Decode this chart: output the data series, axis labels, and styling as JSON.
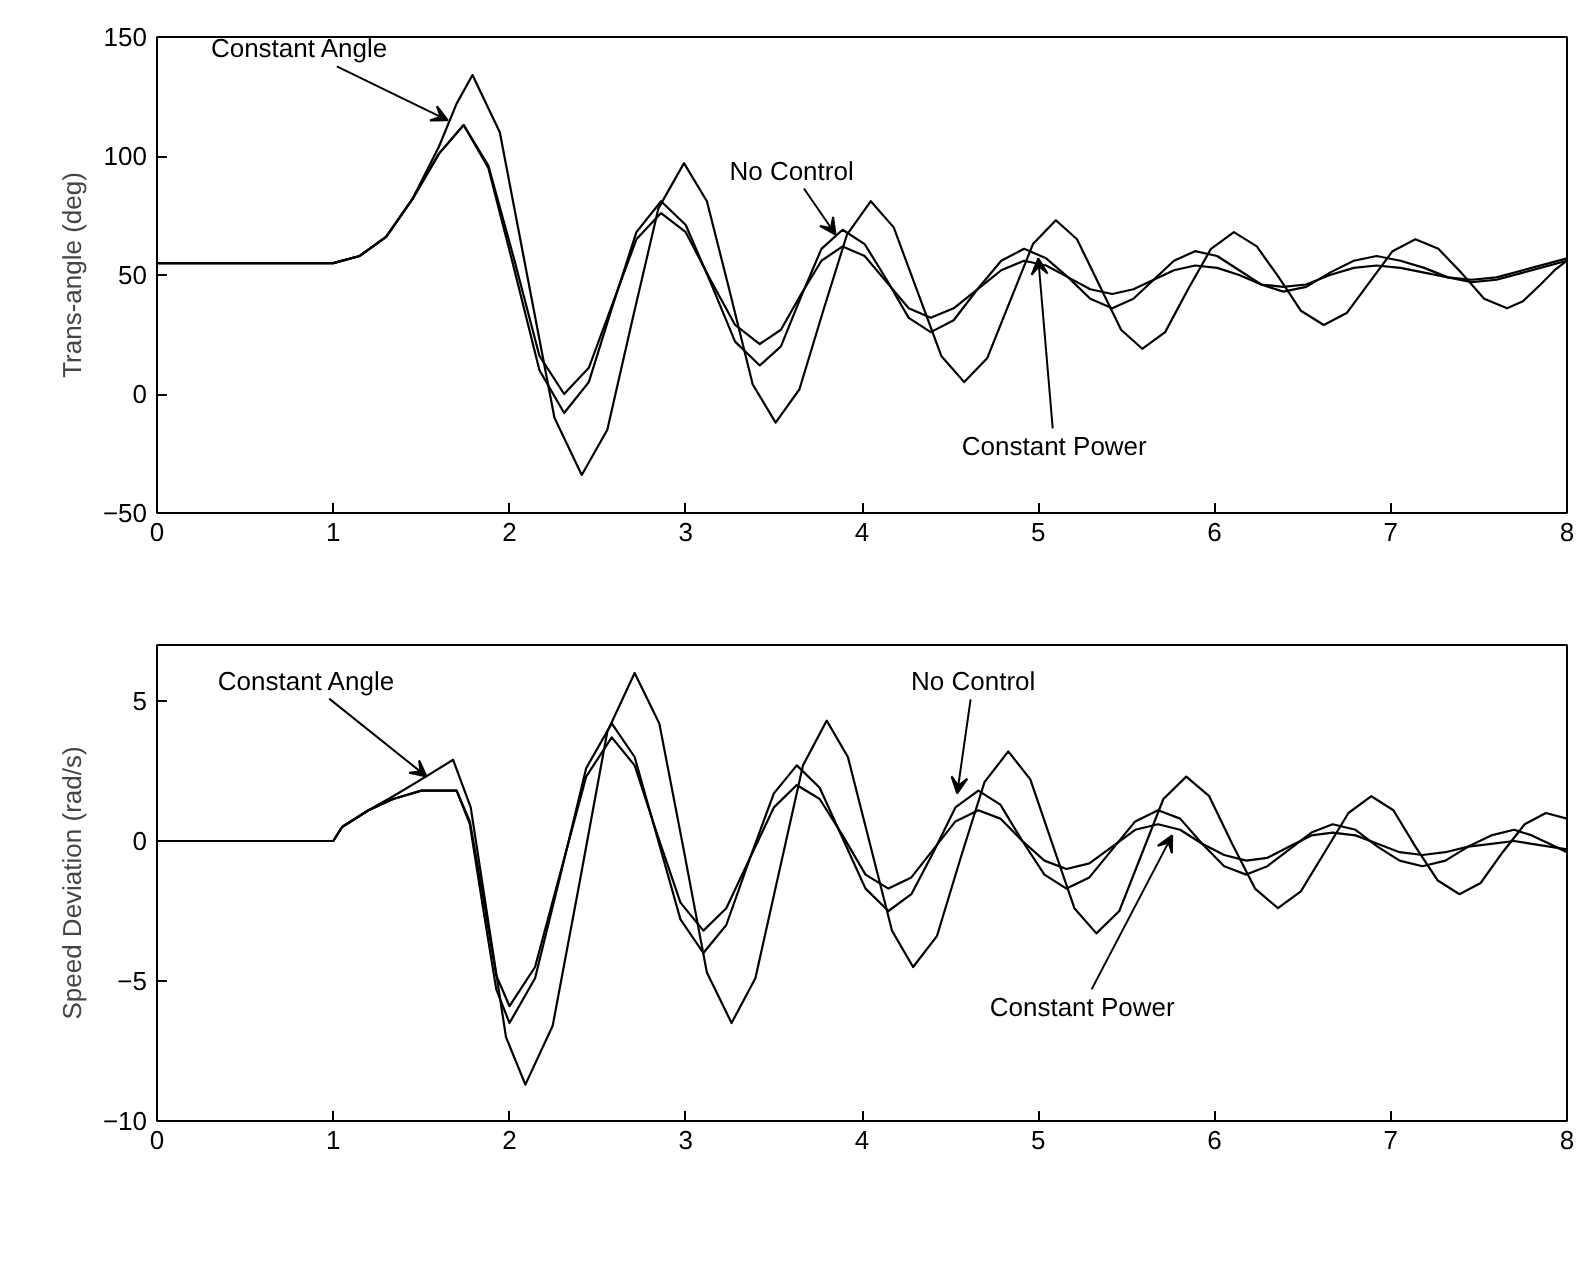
{
  "chart_data": [
    {
      "type": "line",
      "ylabel": "Trans-angle (deg)",
      "xlim": [
        0,
        8
      ],
      "ylim": [
        -50,
        150
      ],
      "xticks": [
        0,
        1,
        2,
        3,
        4,
        5,
        6,
        7,
        8
      ],
      "yticks": [
        -50,
        0,
        50,
        100,
        150
      ],
      "series": [
        {
          "color": "#000000",
          "x": [
            0,
            1,
            1.15,
            1.3,
            1.45,
            1.6,
            1.7,
            1.79,
            1.945,
            2.1,
            2.255,
            2.41,
            2.555,
            2.7,
            2.845,
            2.99,
            3.12,
            3.25,
            3.38,
            3.51,
            3.645,
            3.78,
            3.915,
            4.05,
            4.18,
            4.315,
            4.45,
            4.58,
            4.71,
            4.84,
            4.97,
            5.1,
            5.22,
            5.345,
            5.47,
            5.59,
            5.72,
            5.85,
            5.98,
            6.11,
            6.24,
            6.365,
            6.49,
            6.62,
            6.75,
            6.88,
            7.01,
            7.14,
            7.27,
            7.4,
            7.53,
            7.66,
            7.75,
            7.85,
            7.93,
            8
          ],
          "values": [
            55,
            55,
            58,
            66,
            82,
            104,
            122,
            134,
            110,
            50,
            -10,
            -34,
            -15,
            32,
            78,
            97,
            81,
            43,
            4,
            -12,
            2,
            35,
            67,
            81,
            70,
            43,
            16,
            5,
            15,
            39,
            63,
            73,
            65,
            46,
            27,
            19,
            26,
            44,
            61,
            68,
            62,
            49,
            35,
            29,
            34,
            47,
            60,
            65,
            61,
            51,
            40,
            36,
            39,
            46,
            52,
            56
          ]
        },
        {
          "color": "#000000",
          "x": [
            0,
            1,
            1.15,
            1.3,
            1.45,
            1.6,
            1.74,
            1.88,
            2.025,
            2.17,
            2.31,
            2.45,
            2.585,
            2.72,
            2.86,
            3.0,
            3.14,
            3.28,
            3.42,
            3.54,
            3.655,
            3.77,
            3.89,
            4.015,
            4.14,
            4.265,
            4.39,
            4.52,
            4.655,
            4.79,
            4.92,
            5.045,
            5.17,
            5.295,
            5.42,
            5.54,
            5.655,
            5.77,
            5.89,
            6.015,
            6.14,
            6.265,
            6.39,
            6.52,
            6.655,
            6.79,
            6.92,
            7.055,
            7.19,
            7.325,
            7.46,
            7.6,
            7.75,
            7.9,
            8
          ],
          "values": [
            55,
            55,
            58,
            66,
            82,
            101,
            113,
            95,
            53,
            10,
            -8,
            5,
            37,
            68,
            81,
            71,
            47,
            22,
            12,
            20,
            41,
            61,
            69,
            63,
            48,
            32,
            26,
            31,
            44,
            56,
            61,
            57,
            49,
            40,
            36,
            40,
            48,
            56,
            60,
            58,
            52,
            46,
            43,
            45,
            51,
            56,
            58,
            56,
            53,
            49,
            47,
            48,
            51,
            54,
            56
          ]
        },
        {
          "color": "#000000",
          "x": [
            0,
            1,
            1.15,
            1.3,
            1.45,
            1.6,
            1.74,
            1.88,
            2.025,
            2.17,
            2.31,
            2.45,
            2.585,
            2.72,
            2.86,
            3.0,
            3.14,
            3.28,
            3.42,
            3.54,
            3.655,
            3.77,
            3.89,
            4.015,
            4.14,
            4.265,
            4.39,
            4.52,
            4.655,
            4.79,
            4.92,
            5.045,
            5.17,
            5.295,
            5.42,
            5.54,
            5.655,
            5.77,
            5.89,
            6.015,
            6.14,
            6.265,
            6.39,
            6.52,
            6.655,
            6.79,
            6.92,
            7.055,
            7.19,
            7.325,
            7.46,
            7.6,
            7.75,
            7.9,
            8
          ],
          "values": [
            55,
            55,
            58,
            66,
            82,
            101,
            113,
            96,
            57,
            16,
            0,
            11,
            38,
            65,
            76,
            68,
            48,
            29,
            21,
            27,
            42,
            56,
            62,
            58,
            47,
            36,
            32,
            36,
            44,
            52,
            56,
            54,
            49,
            44,
            42,
            44,
            48,
            52,
            54,
            53,
            50,
            46,
            45,
            46,
            50,
            53,
            54,
            53,
            51,
            49,
            48,
            49,
            52,
            55,
            57
          ]
        }
      ],
      "annotations": [
        {
          "text": "Constant Angle",
          "x": 1.65,
          "y": 115
        },
        {
          "text": "No Control",
          "x": 3.85,
          "y": 67
        },
        {
          "text": "Constant Power",
          "x": 5.0,
          "y": 57
        }
      ]
    },
    {
      "type": "line",
      "ylabel": "Speed Deviation (rad/s)",
      "xlim": [
        0,
        8
      ],
      "ylim": [
        -10,
        7
      ],
      "xticks": [
        0,
        1,
        2,
        3,
        4,
        5,
        6,
        7,
        8
      ],
      "yticks": [
        -10,
        -5,
        0,
        5
      ],
      "series": [
        {
          "color": "#000000",
          "x": [
            0,
            1,
            1.05,
            1.2,
            1.34,
            1.5,
            1.68,
            1.78,
            1.88,
            1.98,
            2.09,
            2.245,
            2.4,
            2.555,
            2.71,
            2.85,
            2.985,
            3.12,
            3.26,
            3.395,
            3.53,
            3.665,
            3.8,
            3.92,
            4.045,
            4.17,
            4.29,
            4.425,
            4.56,
            4.695,
            4.83,
            4.955,
            5.08,
            5.205,
            5.33,
            5.46,
            5.585,
            5.71,
            5.84,
            5.97,
            6.1,
            6.23,
            6.36,
            6.49,
            6.625,
            6.76,
            6.89,
            7.015,
            7.14,
            7.265,
            7.39,
            7.51,
            7.635,
            7.76,
            7.88,
            8
          ],
          "values": [
            0,
            0,
            0.5,
            1.1,
            1.6,
            2.2,
            2.9,
            1.2,
            -2.9,
            -7.0,
            -8.7,
            -6.6,
            -1.4,
            3.9,
            6.0,
            4.2,
            -0.2,
            -4.7,
            -6.5,
            -4.9,
            -1.1,
            2.7,
            4.3,
            3.0,
            -0.1,
            -3.2,
            -4.5,
            -3.4,
            -0.6,
            2.1,
            3.2,
            2.2,
            -0.1,
            -2.4,
            -3.3,
            -2.5,
            -0.5,
            1.5,
            2.3,
            1.6,
            -0.1,
            -1.7,
            -2.4,
            -1.8,
            -0.4,
            1.0,
            1.6,
            1.1,
            -0.2,
            -1.4,
            -1.9,
            -1.5,
            -0.4,
            0.6,
            1.0,
            0.8
          ]
        },
        {
          "color": "#000000",
          "x": [
            0,
            1,
            1.05,
            1.2,
            1.34,
            1.5,
            1.7,
            1.775,
            1.85,
            1.925,
            2.0,
            2.145,
            2.29,
            2.435,
            2.58,
            2.71,
            2.84,
            2.97,
            3.1,
            3.23,
            3.365,
            3.5,
            3.63,
            3.76,
            3.89,
            4.02,
            4.15,
            4.28,
            4.405,
            4.53,
            4.66,
            4.785,
            4.91,
            5.035,
            5.16,
            5.29,
            5.42,
            5.55,
            5.68,
            5.805,
            5.93,
            6.055,
            6.18,
            6.3,
            6.425,
            6.55,
            6.67,
            6.8,
            6.925,
            7.05,
            7.18,
            7.31,
            7.44,
            7.57,
            7.7,
            7.8,
            7.9,
            8
          ],
          "values": [
            0,
            0,
            0.5,
            1.1,
            1.5,
            1.8,
            1.8,
            0.6,
            -2.4,
            -5.3,
            -6.5,
            -4.9,
            -1.2,
            2.6,
            4.2,
            3.0,
            0.1,
            -2.8,
            -4.0,
            -3.0,
            -0.6,
            1.7,
            2.7,
            1.9,
            0.1,
            -1.7,
            -2.5,
            -1.9,
            -0.4,
            1.2,
            1.8,
            1.3,
            0.0,
            -1.2,
            -1.7,
            -1.3,
            -0.3,
            0.7,
            1.1,
            0.8,
            -0.1,
            -0.9,
            -1.2,
            -0.9,
            -0.3,
            0.3,
            0.6,
            0.4,
            -0.2,
            -0.7,
            -0.9,
            -0.7,
            -0.2,
            0.2,
            0.4,
            0.2,
            -0.1,
            -0.4
          ]
        },
        {
          "color": "#000000",
          "x": [
            0,
            1,
            1.05,
            1.2,
            1.34,
            1.5,
            1.7,
            1.775,
            1.85,
            1.925,
            2.0,
            2.145,
            2.29,
            2.435,
            2.58,
            2.71,
            2.84,
            2.97,
            3.1,
            3.23,
            3.365,
            3.5,
            3.63,
            3.76,
            3.89,
            4.02,
            4.15,
            4.28,
            4.405,
            4.53,
            4.66,
            4.785,
            4.91,
            5.035,
            5.16,
            5.29,
            5.42,
            5.55,
            5.68,
            5.805,
            5.93,
            6.055,
            6.18,
            6.3,
            6.425,
            6.55,
            6.67,
            6.8,
            6.925,
            7.05,
            7.18,
            7.31,
            7.44,
            7.57,
            7.7,
            7.8,
            7.9,
            8
          ],
          "values": [
            0,
            0,
            0.5,
            1.1,
            1.5,
            1.8,
            1.8,
            0.7,
            -2.0,
            -4.8,
            -5.9,
            -4.5,
            -1.1,
            2.3,
            3.7,
            2.7,
            0.2,
            -2.2,
            -3.2,
            -2.4,
            -0.6,
            1.2,
            2.0,
            1.5,
            0.2,
            -1.2,
            -1.7,
            -1.3,
            -0.3,
            0.7,
            1.1,
            0.8,
            0.0,
            -0.7,
            -1.0,
            -0.8,
            -0.2,
            0.4,
            0.6,
            0.4,
            -0.1,
            -0.5,
            -0.7,
            -0.6,
            -0.2,
            0.2,
            0.3,
            0.2,
            -0.1,
            -0.4,
            -0.5,
            -0.4,
            -0.2,
            -0.1,
            0.0,
            -0.1,
            -0.2,
            -0.3
          ]
        }
      ],
      "annotations": [
        {
          "text": "Constant Angle",
          "x": 1.53,
          "y": 2.3
        },
        {
          "text": "No Control",
          "x": 4.54,
          "y": 1.7
        },
        {
          "text": "Constant Power",
          "x": 5.76,
          "y": 0.2
        }
      ]
    }
  ]
}
